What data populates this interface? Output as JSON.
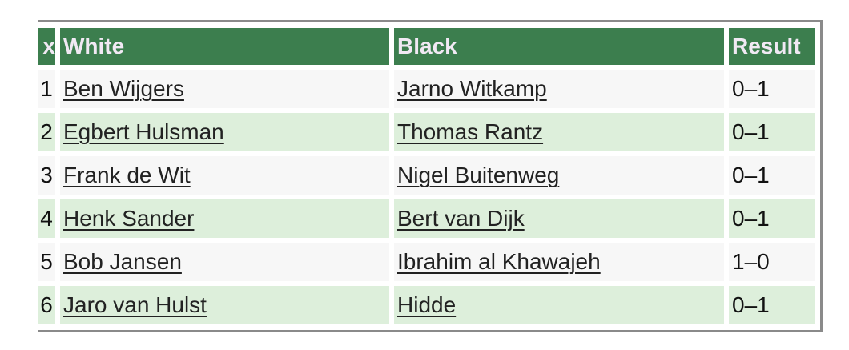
{
  "header": {
    "index": "x",
    "white": "White",
    "black": "Black",
    "result": "Result"
  },
  "rows": [
    {
      "n": "1",
      "white": "Ben Wijgers",
      "black": "Jarno Witkamp",
      "result": "0–1"
    },
    {
      "n": "2",
      "white": "Egbert Hulsman",
      "black": "Thomas Rantz",
      "result": "0–1"
    },
    {
      "n": "3",
      "white": "Frank de Wit",
      "black": "Nigel Buitenweg",
      "result": "0–1"
    },
    {
      "n": "4",
      "white": "Henk Sander",
      "black": "Bert van Dijk",
      "result": "0–1"
    },
    {
      "n": "5",
      "white": "Bob Jansen",
      "black": "Ibrahim al Khawajeh",
      "result": "1–0"
    },
    {
      "n": "6",
      "white": "Jaro van Hulst",
      "black": "Hidde",
      "result": "0–1"
    }
  ],
  "colors": {
    "header_bg": "#3c7e4e",
    "row_odd": "#f7f7f7",
    "row_even": "#ddefdb"
  }
}
